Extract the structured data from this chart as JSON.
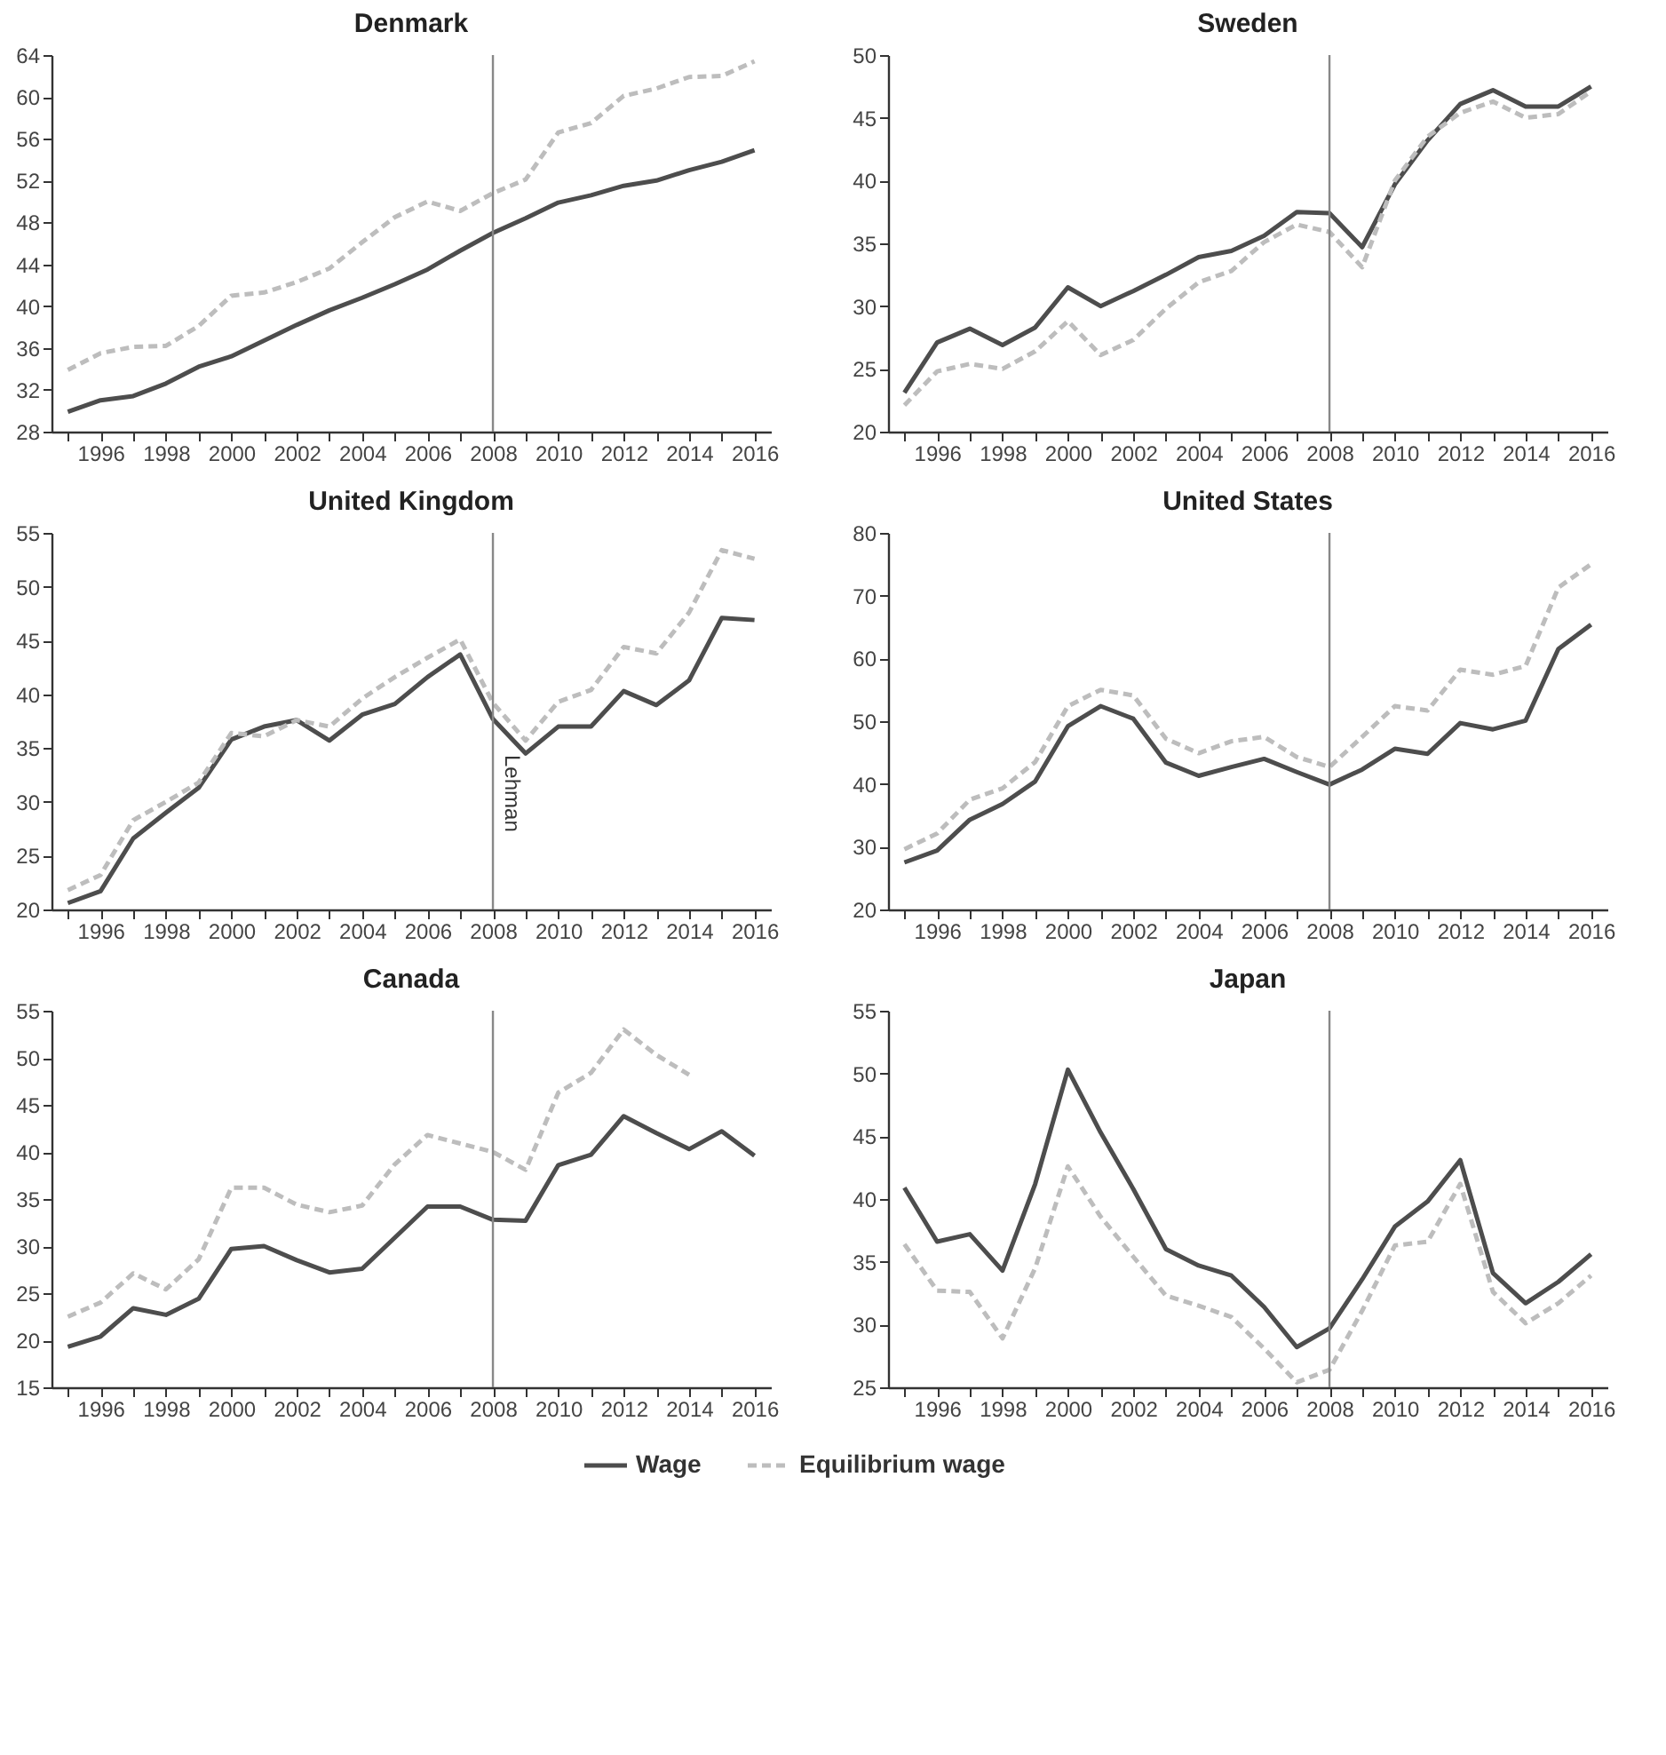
{
  "chart_data": [
    {
      "type": "line",
      "title": "Denmark",
      "x": [
        1995,
        1996,
        1997,
        1998,
        1999,
        2000,
        2001,
        2002,
        2003,
        2004,
        2005,
        2006,
        2007,
        2008,
        2009,
        2010,
        2011,
        2012,
        2013,
        2014,
        2015,
        2016
      ],
      "xlim": [
        1994.5,
        2016.5
      ],
      "xticks": [
        {
          "value": 1995,
          "label": null
        },
        1996,
        {
          "value": 1997,
          "label": null
        },
        1998,
        {
          "value": 1999,
          "label": null
        },
        2000,
        {
          "value": 2001,
          "label": null
        },
        2002,
        {
          "value": 2003,
          "label": null
        },
        2004,
        {
          "value": 2005,
          "label": null
        },
        2006,
        {
          "value": 2007,
          "label": null
        },
        2008,
        {
          "value": 2009,
          "label": null
        },
        2010,
        {
          "value": 2011,
          "label": null
        },
        2012,
        {
          "value": 2013,
          "label": null
        },
        2014,
        {
          "value": 2015,
          "label": null
        },
        2016
      ],
      "ylim": [
        28,
        64
      ],
      "yticks": [
        28,
        32,
        36,
        40,
        44,
        48,
        52,
        56,
        60,
        64
      ],
      "grid": false,
      "ref_lines": [
        {
          "axis": "x",
          "value": 2008,
          "label": null,
          "color": "#888888"
        }
      ],
      "series": [
        {
          "color": "#4d4d4d",
          "line_style": "solid",
          "values": [
            29.9,
            31.0,
            31.4,
            32.6,
            34.2,
            35.2,
            36.7,
            38.2,
            39.6,
            40.8,
            42.1,
            43.5,
            45.3,
            47.0,
            48.4,
            49.9,
            50.6,
            51.5,
            52.0,
            53.0,
            53.8,
            54.9
          ]
        },
        {
          "color": "#bdbdbd",
          "line_style": "dashed",
          "values": [
            33.9,
            35.5,
            36.1,
            36.2,
            38.1,
            41.0,
            41.3,
            42.3,
            43.6,
            46.1,
            48.5,
            50.0,
            49.1,
            50.8,
            52.1,
            56.6,
            57.5,
            60.1,
            60.8,
            61.9,
            62.0,
            63.4
          ]
        }
      ]
    },
    {
      "type": "line",
      "title": "Sweden",
      "x": [
        1995,
        1996,
        1997,
        1998,
        1999,
        2000,
        2001,
        2002,
        2003,
        2004,
        2005,
        2006,
        2007,
        2008,
        2009,
        2010,
        2011,
        2012,
        2013,
        2014,
        2015,
        2016
      ],
      "xlim": [
        1994.5,
        2016.5
      ],
      "xticks": [
        {
          "value": 1995,
          "label": null
        },
        1996,
        {
          "value": 1997,
          "label": null
        },
        1998,
        {
          "value": 1999,
          "label": null
        },
        2000,
        {
          "value": 2001,
          "label": null
        },
        2002,
        {
          "value": 2003,
          "label": null
        },
        2004,
        {
          "value": 2005,
          "label": null
        },
        2006,
        {
          "value": 2007,
          "label": null
        },
        2008,
        {
          "value": 2009,
          "label": null
        },
        2010,
        {
          "value": 2011,
          "label": null
        },
        2012,
        {
          "value": 2013,
          "label": null
        },
        2014,
        {
          "value": 2015,
          "label": null
        },
        2016
      ],
      "ylim": [
        20,
        50
      ],
      "yticks": [
        20,
        25,
        30,
        35,
        40,
        45,
        50
      ],
      "grid": false,
      "ref_lines": [
        {
          "axis": "x",
          "value": 2008,
          "label": null,
          "color": "#888888"
        }
      ],
      "series": [
        {
          "color": "#4d4d4d",
          "line_style": "solid",
          "values": [
            23.1,
            27.1,
            28.2,
            26.9,
            28.3,
            31.5,
            30.0,
            31.2,
            32.5,
            33.9,
            34.4,
            35.6,
            37.5,
            37.4,
            34.7,
            39.7,
            43.2,
            46.1,
            47.2,
            45.9,
            45.9,
            47.5
          ]
        },
        {
          "color": "#bdbdbd",
          "line_style": "dashed",
          "values": [
            22.1,
            24.8,
            25.4,
            25.0,
            26.4,
            28.8,
            26.1,
            27.3,
            29.8,
            31.9,
            32.8,
            35.1,
            36.5,
            35.9,
            33.1,
            40.0,
            43.5,
            45.4,
            46.3,
            45.0,
            45.3,
            47.1
          ]
        }
      ]
    },
    {
      "type": "line",
      "title": "United Kingdom",
      "x": [
        1995,
        1996,
        1997,
        1998,
        1999,
        2000,
        2001,
        2002,
        2003,
        2004,
        2005,
        2006,
        2007,
        2008,
        2009,
        2010,
        2011,
        2012,
        2013,
        2014,
        2015,
        2016
      ],
      "xlim": [
        1994.5,
        2016.5
      ],
      "xticks": [
        {
          "value": 1995,
          "label": null
        },
        1996,
        {
          "value": 1997,
          "label": null
        },
        1998,
        {
          "value": 1999,
          "label": null
        },
        2000,
        {
          "value": 2001,
          "label": null
        },
        2002,
        {
          "value": 2003,
          "label": null
        },
        2004,
        {
          "value": 2005,
          "label": null
        },
        2006,
        {
          "value": 2007,
          "label": null
        },
        2008,
        {
          "value": 2009,
          "label": null
        },
        2010,
        {
          "value": 2011,
          "label": null
        },
        2012,
        {
          "value": 2013,
          "label": null
        },
        2014,
        {
          "value": 2015,
          "label": null
        },
        2016
      ],
      "ylim": [
        20,
        55
      ],
      "yticks": [
        20,
        25,
        30,
        35,
        40,
        45,
        50,
        55
      ],
      "grid": false,
      "ref_lines": [
        {
          "axis": "x",
          "value": 2008,
          "label": "Lehman",
          "color": "#888888"
        }
      ],
      "series": [
        {
          "color": "#4d4d4d",
          "line_style": "solid",
          "values": [
            20.6,
            21.7,
            26.6,
            29.0,
            31.3,
            35.8,
            37.0,
            37.6,
            35.7,
            38.1,
            39.1,
            41.6,
            43.7,
            37.7,
            34.5,
            37.0,
            37.0,
            40.3,
            39.0,
            41.3,
            47.1,
            46.9
          ]
        },
        {
          "color": "#bdbdbd",
          "line_style": "dashed",
          "values": [
            21.8,
            23.2,
            28.3,
            30.0,
            31.8,
            36.4,
            36.1,
            37.6,
            37.0,
            39.6,
            41.6,
            43.4,
            45.1,
            39.2,
            35.7,
            39.3,
            40.4,
            44.4,
            43.8,
            47.6,
            53.4,
            52.6
          ]
        }
      ]
    },
    {
      "type": "line",
      "title": "United States",
      "x": [
        1995,
        1996,
        1997,
        1998,
        1999,
        2000,
        2001,
        2002,
        2003,
        2004,
        2005,
        2006,
        2007,
        2008,
        2009,
        2010,
        2011,
        2012,
        2013,
        2014,
        2015,
        2016
      ],
      "xlim": [
        1994.5,
        2016.5
      ],
      "xticks": [
        {
          "value": 1995,
          "label": null
        },
        1996,
        {
          "value": 1997,
          "label": null
        },
        1998,
        {
          "value": 1999,
          "label": null
        },
        2000,
        {
          "value": 2001,
          "label": null
        },
        2002,
        {
          "value": 2003,
          "label": null
        },
        2004,
        {
          "value": 2005,
          "label": null
        },
        2006,
        {
          "value": 2007,
          "label": null
        },
        2008,
        {
          "value": 2009,
          "label": null
        },
        2010,
        {
          "value": 2011,
          "label": null
        },
        2012,
        {
          "value": 2013,
          "label": null
        },
        2014,
        {
          "value": 2015,
          "label": null
        },
        2016
      ],
      "ylim": [
        20,
        80
      ],
      "yticks": [
        20,
        30,
        40,
        50,
        60,
        70,
        80
      ],
      "grid": false,
      "ref_lines": [
        {
          "axis": "x",
          "value": 2008,
          "label": null,
          "color": "#888888"
        }
      ],
      "series": [
        {
          "color": "#4d4d4d",
          "line_style": "solid",
          "values": [
            27.5,
            29.4,
            34.3,
            36.8,
            40.4,
            49.2,
            52.4,
            50.4,
            43.4,
            41.3,
            42.7,
            44.0,
            41.9,
            39.9,
            42.3,
            45.6,
            44.8,
            49.7,
            48.7,
            50.1,
            61.5,
            65.4
          ]
        },
        {
          "color": "#bdbdbd",
          "line_style": "dashed",
          "values": [
            29.6,
            32.1,
            37.5,
            39.3,
            43.5,
            52.4,
            55.0,
            54.1,
            47.2,
            44.9,
            46.8,
            47.5,
            44.3,
            42.7,
            47.5,
            52.4,
            51.7,
            58.2,
            57.4,
            58.8,
            71.3,
            75.0
          ]
        }
      ]
    },
    {
      "type": "line",
      "title": "Canada",
      "x": [
        1995,
        1996,
        1997,
        1998,
        1999,
        2000,
        2001,
        2002,
        2003,
        2004,
        2005,
        2006,
        2007,
        2008,
        2009,
        2010,
        2011,
        2012,
        2013,
        2014,
        2015,
        2016
      ],
      "xlim": [
        1994.5,
        2016.5
      ],
      "xticks": [
        {
          "value": 1995,
          "label": null
        },
        1996,
        {
          "value": 1997,
          "label": null
        },
        1998,
        {
          "value": 1999,
          "label": null
        },
        2000,
        {
          "value": 2001,
          "label": null
        },
        2002,
        {
          "value": 2003,
          "label": null
        },
        2004,
        {
          "value": 2005,
          "label": null
        },
        2006,
        {
          "value": 2007,
          "label": null
        },
        2008,
        {
          "value": 2009,
          "label": null
        },
        2010,
        {
          "value": 2011,
          "label": null
        },
        2012,
        {
          "value": 2013,
          "label": null
        },
        2014,
        {
          "value": 2015,
          "label": null
        },
        2016
      ],
      "ylim": [
        15,
        55
      ],
      "yticks": [
        15,
        20,
        25,
        30,
        35,
        40,
        45,
        50,
        55
      ],
      "grid": false,
      "ref_lines": [
        {
          "axis": "x",
          "value": 2008,
          "label": null,
          "color": "#888888"
        }
      ],
      "series": [
        {
          "color": "#4d4d4d",
          "line_style": "solid",
          "values": [
            19.3,
            20.4,
            23.4,
            22.7,
            24.4,
            29.7,
            30.0,
            28.5,
            27.2,
            27.6,
            30.9,
            34.2,
            34.2,
            32.8,
            32.7,
            38.6,
            39.7,
            43.8,
            42.0,
            40.3,
            42.2,
            39.6
          ]
        },
        {
          "color": "#bdbdbd",
          "line_style": "dashed",
          "values": [
            22.5,
            24.0,
            27.1,
            25.4,
            28.6,
            36.2,
            36.2,
            34.4,
            33.6,
            34.3,
            38.7,
            41.8,
            40.9,
            40.0,
            38.1,
            46.3,
            48.4,
            53.0,
            50.3,
            48.2,
            null,
            null
          ]
        }
      ]
    },
    {
      "type": "line",
      "title": "Japan",
      "x": [
        1995,
        1996,
        1997,
        1998,
        1999,
        2000,
        2001,
        2002,
        2003,
        2004,
        2005,
        2006,
        2007,
        2008,
        2009,
        2010,
        2011,
        2012,
        2013,
        2014,
        2015,
        2016
      ],
      "xlim": [
        1994.5,
        2016.5
      ],
      "xticks": [
        {
          "value": 1995,
          "label": null
        },
        1996,
        {
          "value": 1997,
          "label": null
        },
        1998,
        {
          "value": 1999,
          "label": null
        },
        2000,
        {
          "value": 2001,
          "label": null
        },
        2002,
        {
          "value": 2003,
          "label": null
        },
        2004,
        {
          "value": 2005,
          "label": null
        },
        2006,
        {
          "value": 2007,
          "label": null
        },
        2008,
        {
          "value": 2009,
          "label": null
        },
        2010,
        {
          "value": 2011,
          "label": null
        },
        2012,
        {
          "value": 2013,
          "label": null
        },
        2014,
        {
          "value": 2015,
          "label": null
        },
        2016
      ],
      "ylim": [
        25,
        55
      ],
      "yticks": [
        25,
        30,
        35,
        40,
        45,
        50,
        55
      ],
      "grid": false,
      "legend": "bottom",
      "ref_lines": [
        {
          "axis": "x",
          "value": 2008,
          "label": null,
          "color": "#888888"
        }
      ],
      "series": [
        {
          "name": "Wage",
          "color": "#4d4d4d",
          "line_style": "solid",
          "values": [
            40.9,
            36.6,
            37.2,
            34.3,
            41.2,
            50.3,
            45.3,
            40.8,
            36.0,
            34.7,
            33.9,
            31.4,
            28.2,
            29.7,
            33.6,
            37.8,
            39.8,
            43.1,
            34.1,
            31.7,
            33.4,
            35.6
          ]
        },
        {
          "name": "Equilibrium wage",
          "color": "#bdbdbd",
          "line_style": "dashed",
          "values": [
            36.4,
            32.7,
            32.6,
            28.9,
            34.5,
            42.6,
            38.6,
            35.4,
            32.3,
            31.5,
            30.6,
            28.1,
            25.4,
            26.4,
            31.1,
            36.3,
            36.6,
            41.2,
            32.6,
            30.1,
            31.7,
            33.9
          ]
        }
      ]
    }
  ]
}
